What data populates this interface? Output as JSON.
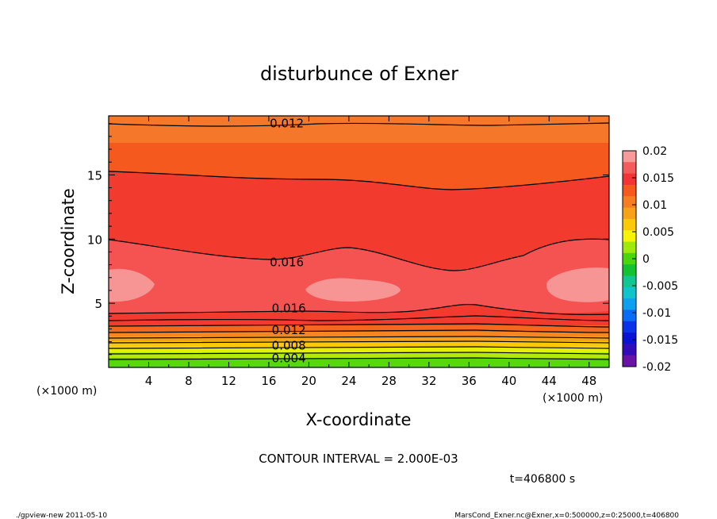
{
  "chart_data": {
    "type": "contour",
    "title": "disturbunce of Exner",
    "xlabel": "X-coordinate",
    "ylabel": "Z-coordinate",
    "x_unit": "(×1000 m)",
    "y_unit": "(×1000 m)",
    "xlim": [
      0,
      50
    ],
    "ylim": [
      0,
      19.6
    ],
    "x_ticks": [
      4,
      8,
      12,
      16,
      20,
      24,
      28,
      32,
      36,
      40,
      44,
      48
    ],
    "y_ticks": [
      5,
      10,
      15
    ],
    "contour_interval_text": "CONTOUR INTERVAL = 2.000E-03",
    "time_text": "t=406800 s",
    "colorbar": {
      "ticks": [
        "0.02",
        "0.015",
        "0.01",
        "0.005",
        "0",
        "-0.005",
        "-0.01",
        "-0.015",
        "-0.02"
      ],
      "colors": [
        "#f79a9a",
        "#f45b5b",
        "#f33434",
        "#f5591e",
        "#f77d22",
        "#f6a21b",
        "#fbc90a",
        "#f6f306",
        "#a0ea0b",
        "#4ad60d",
        "#12c32f",
        "#11c690",
        "#11c4c9",
        "#0ea0ef",
        "#0a6bf3",
        "#0833e8",
        "#0a12d3",
        "#320cb8",
        "#6812a6"
      ]
    },
    "contour_labels": [
      {
        "text": "0.012",
        "x": 17.8,
        "z": 19.0
      },
      {
        "text": "0.016",
        "x": 17.8,
        "z": 8.2
      },
      {
        "text": "0.016",
        "x": 18.0,
        "z": 4.6
      },
      {
        "text": "0.012",
        "x": 18.0,
        "z": 2.9
      },
      {
        "text": "0.008",
        "x": 18.0,
        "z": 1.7
      },
      {
        "text": "0.004",
        "x": 18.0,
        "z": 0.7
      }
    ]
  },
  "footer": {
    "left": "./gpview-new   2011-05-10",
    "right": "MarsCond_Exner.nc@Exner,x=0:500000,z=0:25000,t=406800"
  }
}
